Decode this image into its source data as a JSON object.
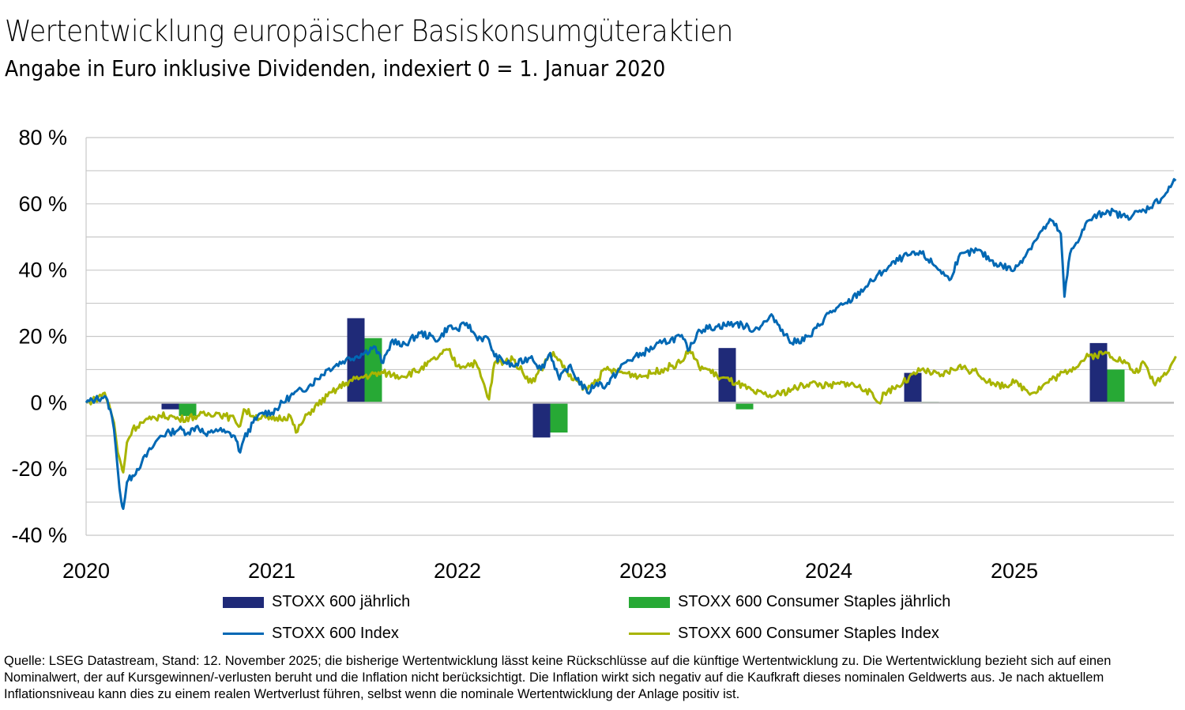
{
  "header": {
    "title": "Wertentwicklung europäischer Basiskonsumgüteraktien",
    "subtitle": "Angabe in Euro inklusive Dividenden, indexiert 0 = 1. Januar 2020"
  },
  "colors": {
    "stoxx600_bar": "#1f2a78",
    "staples_bar": "#27a935",
    "stoxx600_line": "#0068b4",
    "staples_line": "#a8b400",
    "grid": "#c8c8c8",
    "zero_line": "#bdbdbd"
  },
  "chart_data": {
    "type": "line",
    "title": "Wertentwicklung europäischer Basiskonsumgüteraktien",
    "subtitle": "Angabe in Euro inklusive Dividenden, indexiert 0 = 1. Januar 2020",
    "xlabel": "",
    "ylabel": "",
    "ylim": [
      -40,
      80
    ],
    "xlim": [
      2020.0,
      2025.87
    ],
    "yticks": [
      -40,
      -20,
      0,
      20,
      40,
      60,
      80
    ],
    "ytick_labels": [
      "-40 %",
      "-20 %",
      "0 %",
      "20 %",
      "40 %",
      "60 %",
      "80 %"
    ],
    "minor_grid_step": 10,
    "xticks": [
      2020,
      2021,
      2022,
      2023,
      2024,
      2025
    ],
    "xtick_labels": [
      "2020",
      "2021",
      "2022",
      "2023",
      "2024",
      "2025"
    ],
    "grid": true,
    "legend_position": "bottom",
    "bars": {
      "categories": [
        "2020",
        "2021",
        "2022",
        "2023",
        "2024",
        "2025"
      ],
      "series": [
        {
          "name": "STOXX 600 jährlich",
          "color_key": "stoxx600_bar",
          "values": [
            -2,
            25.5,
            -10.5,
            16.5,
            9,
            18
          ]
        },
        {
          "name": "STOXX 600 Consumer Staples jährlich",
          "color_key": "staples_bar",
          "values": [
            -4,
            19.5,
            -9,
            -2,
            0.3,
            10
          ]
        }
      ]
    },
    "series": [
      {
        "name": "STOXX 600 Index",
        "color_key": "stoxx600_line",
        "x": [
          2020.0,
          2020.05,
          2020.1,
          2020.13,
          2020.15,
          2020.17,
          2020.19,
          2020.2,
          2020.22,
          2020.25,
          2020.3,
          2020.35,
          2020.4,
          2020.45,
          2020.5,
          2020.55,
          2020.6,
          2020.65,
          2020.7,
          2020.75,
          2020.8,
          2020.83,
          2020.85,
          2020.9,
          2020.95,
          2021.0,
          2021.1,
          2021.2,
          2021.3,
          2021.4,
          2021.5,
          2021.55,
          2021.6,
          2021.65,
          2021.7,
          2021.8,
          2021.9,
          2021.95,
          2022.0,
          2022.05,
          2022.1,
          2022.17,
          2022.2,
          2022.3,
          2022.4,
          2022.45,
          2022.5,
          2022.55,
          2022.6,
          2022.7,
          2022.75,
          2022.8,
          2022.9,
          2023.0,
          2023.1,
          2023.2,
          2023.25,
          2023.3,
          2023.4,
          2023.5,
          2023.6,
          2023.7,
          2023.75,
          2023.8,
          2023.9,
          2024.0,
          2024.1,
          2024.2,
          2024.3,
          2024.4,
          2024.5,
          2024.6,
          2024.65,
          2024.7,
          2024.8,
          2024.9,
          2025.0,
          2025.1,
          2025.15,
          2025.2,
          2025.25,
          2025.27,
          2025.3,
          2025.4,
          2025.5,
          2025.6,
          2025.7,
          2025.8,
          2025.85,
          2025.87
        ],
        "values": [
          0,
          1,
          2,
          -2,
          -8,
          -20,
          -30,
          -32,
          -24,
          -22,
          -18,
          -14,
          -10,
          -9,
          -8,
          -9,
          -7,
          -10,
          -8,
          -9,
          -10,
          -15,
          -11,
          -6,
          -3,
          -3,
          2,
          5,
          10,
          13,
          15,
          17,
          12,
          19,
          17,
          21,
          19,
          23,
          22,
          24,
          20,
          19,
          14,
          11,
          14,
          10,
          15,
          7,
          11,
          3,
          6,
          5,
          12,
          15,
          18,
          20,
          16,
          22,
          23,
          24,
          22,
          26,
          22,
          18,
          20,
          27,
          30,
          35,
          40,
          44,
          45,
          40,
          37,
          44,
          46,
          42,
          40,
          48,
          52,
          55,
          51,
          32,
          45,
          55,
          58,
          56,
          58,
          62,
          66,
          67
        ]
      },
      {
        "name": "STOXX 600 Consumer Staples Index",
        "color_key": "staples_line",
        "x": [
          2020.0,
          2020.05,
          2020.1,
          2020.13,
          2020.15,
          2020.17,
          2020.19,
          2020.2,
          2020.22,
          2020.25,
          2020.3,
          2020.35,
          2020.4,
          2020.45,
          2020.5,
          2020.6,
          2020.7,
          2020.75,
          2020.8,
          2020.83,
          2020.85,
          2020.9,
          2021.0,
          2021.1,
          2021.13,
          2021.2,
          2021.3,
          2021.4,
          2021.5,
          2021.6,
          2021.7,
          2021.8,
          2021.9,
          2021.95,
          2022.0,
          2022.1,
          2022.17,
          2022.2,
          2022.3,
          2022.4,
          2022.45,
          2022.5,
          2022.55,
          2022.6,
          2022.7,
          2022.8,
          2022.9,
          2023.0,
          2023.1,
          2023.2,
          2023.25,
          2023.3,
          2023.35,
          2023.4,
          2023.5,
          2023.6,
          2023.7,
          2023.8,
          2023.9,
          2024.0,
          2024.1,
          2024.2,
          2024.27,
          2024.3,
          2024.4,
          2024.5,
          2024.6,
          2024.7,
          2024.8,
          2024.9,
          2025.0,
          2025.1,
          2025.2,
          2025.3,
          2025.4,
          2025.5,
          2025.6,
          2025.65,
          2025.7,
          2025.75,
          2025.8,
          2025.85,
          2025.87
        ],
        "values": [
          0,
          1,
          3,
          -2,
          -6,
          -15,
          -19,
          -21,
          -12,
          -8,
          -6,
          -5,
          -4,
          -4,
          -5,
          -4,
          -3,
          -4,
          -5,
          -7,
          -2,
          -4,
          -5,
          -4,
          -9,
          -3,
          2,
          6,
          8,
          9,
          8,
          10,
          14,
          16,
          11,
          12,
          1,
          12,
          13,
          6,
          10,
          15,
          13,
          8,
          4,
          10,
          9,
          8,
          10,
          12,
          16,
          11,
          10,
          8,
          6,
          3,
          2,
          4,
          6,
          5,
          6,
          4,
          0,
          3,
          6,
          10,
          8,
          11,
          9,
          5,
          6,
          3,
          7,
          10,
          14,
          15,
          12,
          9,
          12,
          6,
          8,
          12,
          14
        ]
      }
    ]
  },
  "legend": [
    {
      "label": "STOXX 600 jährlich",
      "type": "bar",
      "color_key": "stoxx600_bar"
    },
    {
      "label": "STOXX 600 Consumer Staples jährlich",
      "type": "bar",
      "color_key": "staples_bar"
    },
    {
      "label": "STOXX 600 Index",
      "type": "line",
      "color_key": "stoxx600_line"
    },
    {
      "label": "STOXX 600 Consumer Staples Index",
      "type": "line",
      "color_key": "staples_line"
    }
  ],
  "footer": {
    "text": "Quelle: LSEG Datastream, Stand: 12. November 2025; die bisherige Wertentwicklung lässt keine Rückschlüsse auf die künftige Wertentwicklung zu. Die Wertentwicklung bezieht sich auf einen Nominalwert, der auf Kursgewinnen/-verlusten beruht und die Inflation nicht berücksichtigt. Die Inflation wirkt sich negativ auf die Kaufkraft dieses nominalen Geldwerts aus. Je nach aktuellem Inflationsniveau kann dies zu einem realen Wertverlust führen, selbst wenn die nominale Wertentwicklung der Anlage positiv ist."
  }
}
